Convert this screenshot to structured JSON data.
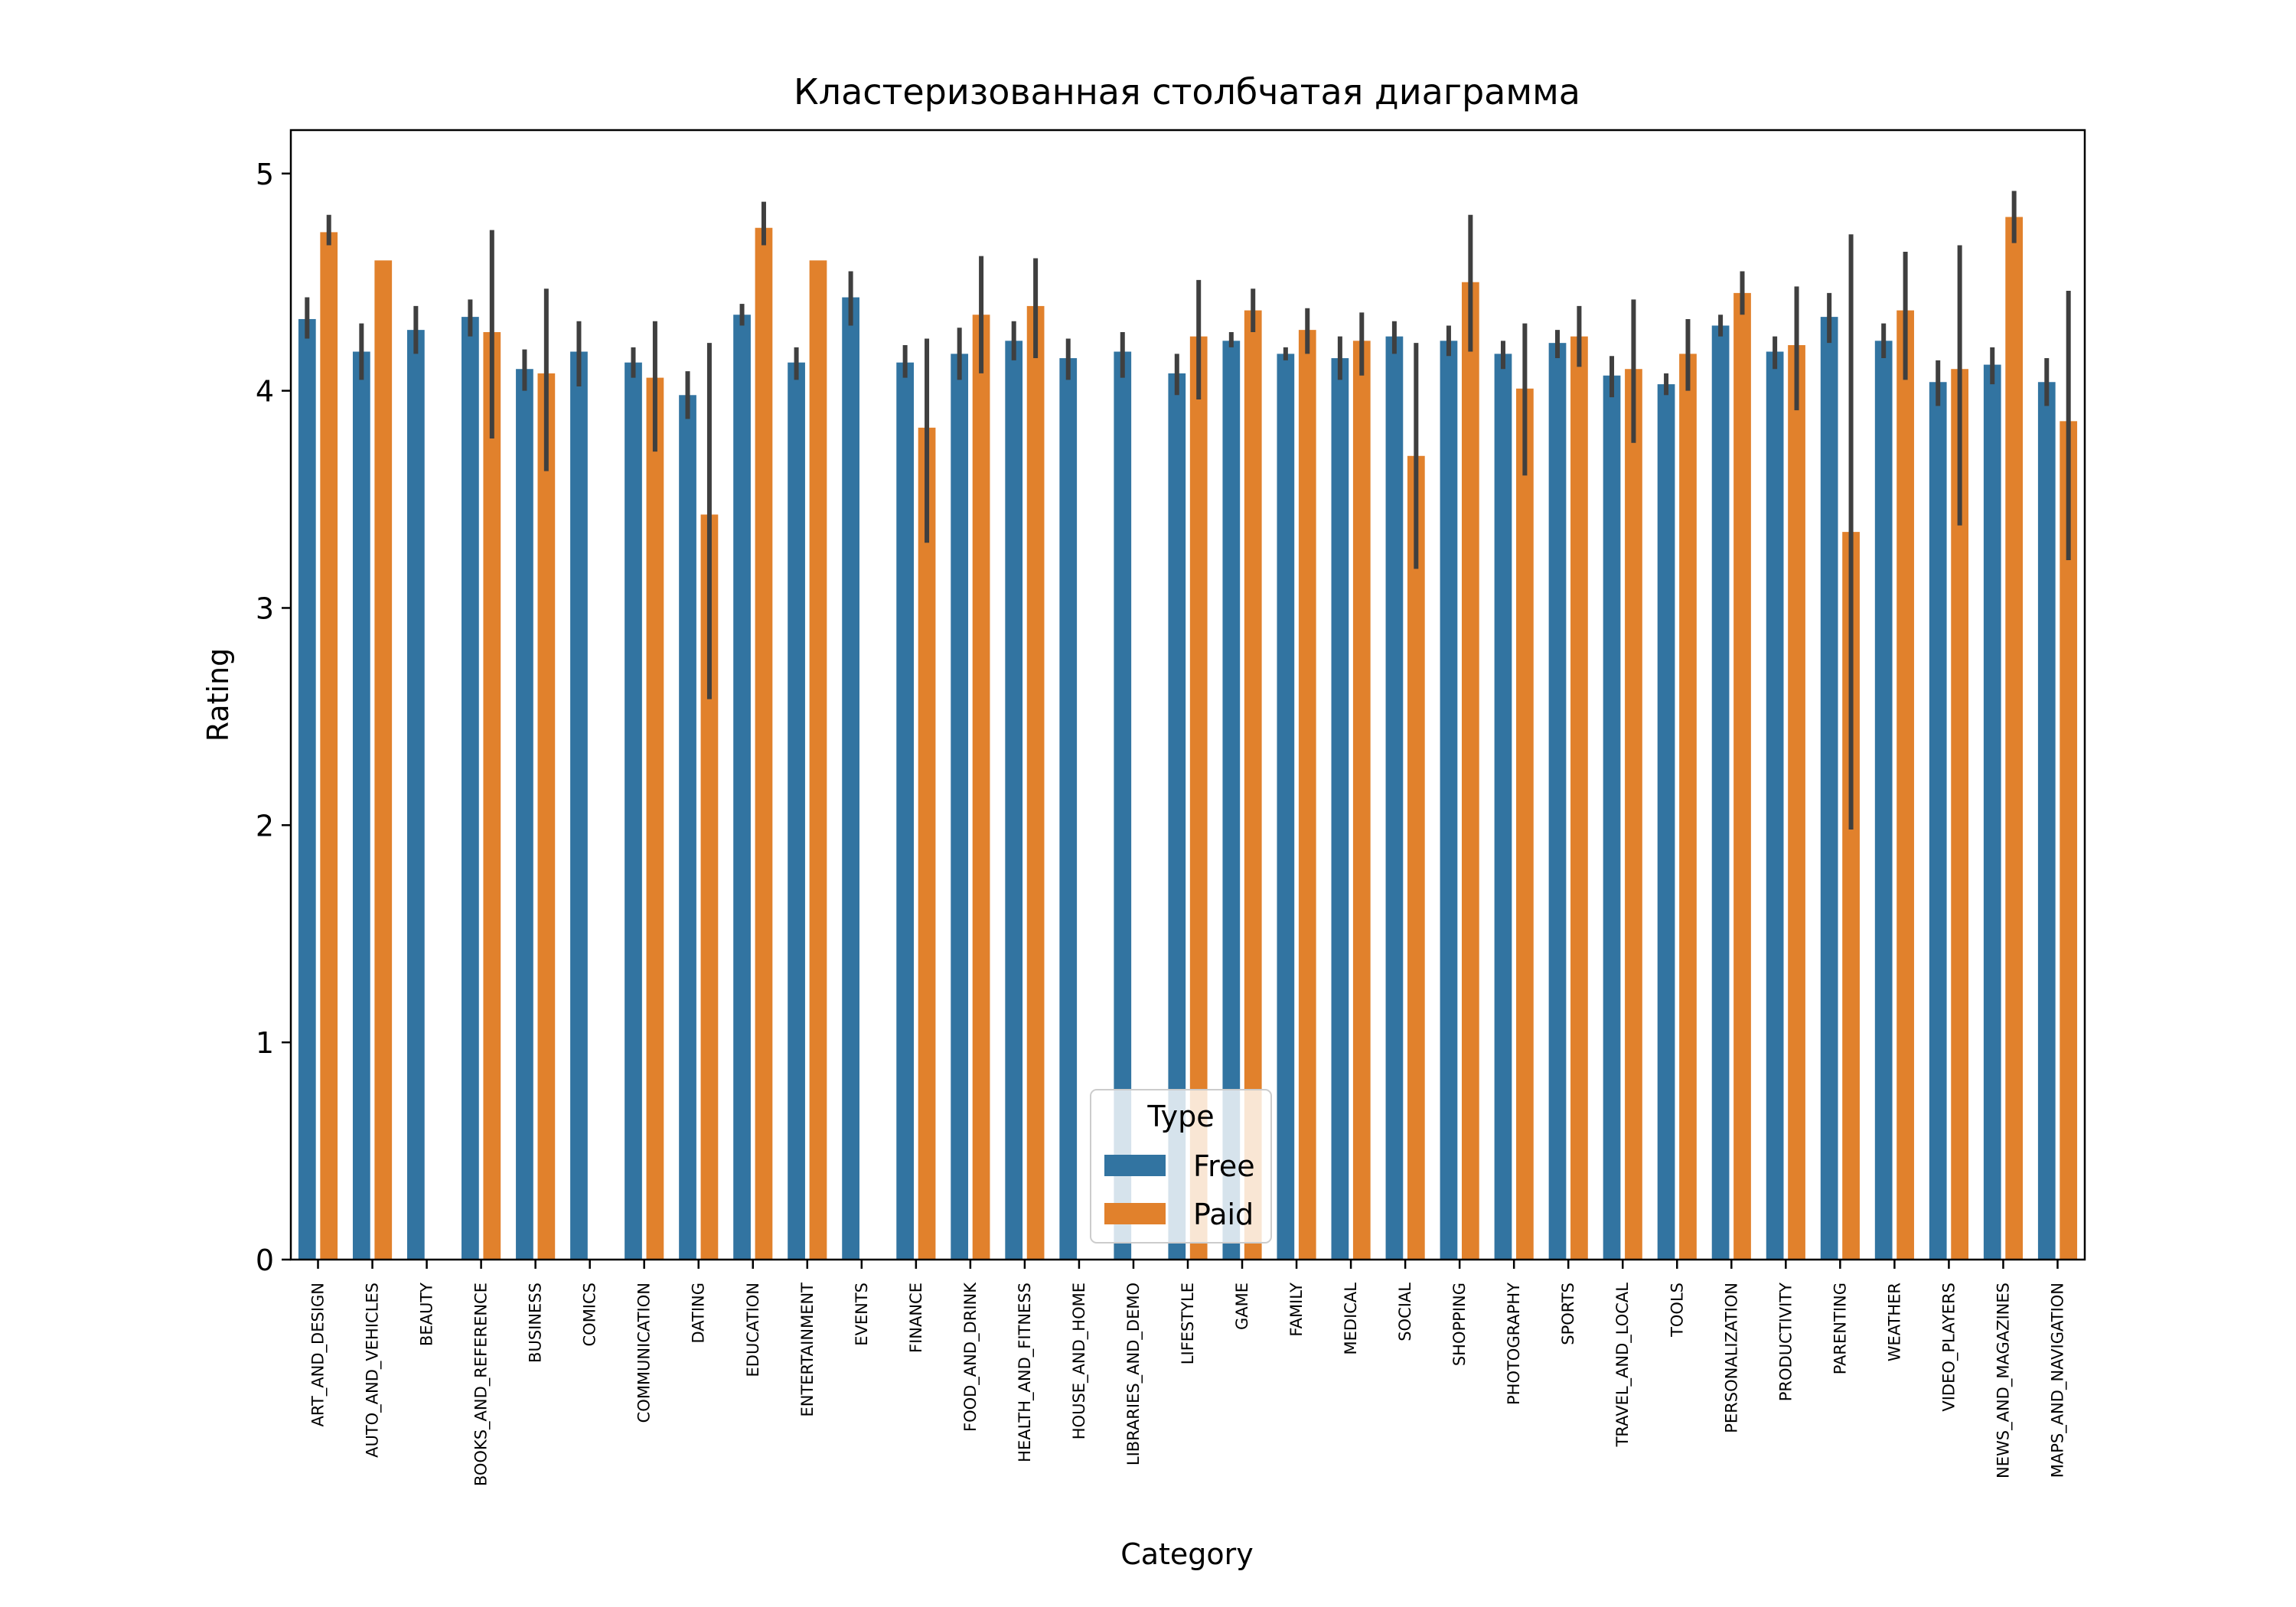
{
  "chart_data": {
    "type": "bar",
    "title": "Кластеризованная столбчатая диаграмма",
    "xlabel": "Category",
    "ylabel": "Rating",
    "ylim": [
      0,
      5.2
    ],
    "yticks": [
      0,
      1,
      2,
      3,
      4,
      5
    ],
    "categories": [
      "ART_AND_DESIGN",
      "AUTO_AND_VEHICLES",
      "BEAUTY",
      "BOOKS_AND_REFERENCE",
      "BUSINESS",
      "COMICS",
      "COMMUNICATION",
      "DATING",
      "EDUCATION",
      "ENTERTAINMENT",
      "EVENTS",
      "FINANCE",
      "FOOD_AND_DRINK",
      "HEALTH_AND_FITNESS",
      "HOUSE_AND_HOME",
      "LIBRARIES_AND_DEMO",
      "LIFESTYLE",
      "GAME",
      "FAMILY",
      "MEDICAL",
      "SOCIAL",
      "SHOPPING",
      "PHOTOGRAPHY",
      "SPORTS",
      "TRAVEL_AND_LOCAL",
      "TOOLS",
      "PERSONALIZATION",
      "PRODUCTIVITY",
      "PARENTING",
      "WEATHER",
      "VIDEO_PLAYERS",
      "NEWS_AND_MAGAZINES",
      "MAPS_AND_NAVIGATION"
    ],
    "series": [
      {
        "name": "Free",
        "color": "#3274a1",
        "values": [
          4.33,
          4.18,
          4.28,
          4.34,
          4.1,
          4.18,
          4.13,
          3.98,
          4.35,
          4.13,
          4.43,
          4.13,
          4.17,
          4.23,
          4.15,
          4.18,
          4.08,
          4.23,
          4.17,
          4.15,
          4.25,
          4.23,
          4.17,
          4.22,
          4.07,
          4.03,
          4.3,
          4.18,
          4.34,
          4.23,
          4.04,
          4.12,
          4.04
        ],
        "ci_low": [
          4.24,
          4.05,
          4.17,
          4.25,
          4.0,
          4.02,
          4.06,
          3.87,
          4.3,
          4.05,
          4.3,
          4.06,
          4.05,
          4.14,
          4.05,
          4.06,
          3.98,
          4.2,
          4.14,
          4.05,
          4.17,
          4.16,
          4.1,
          4.15,
          3.97,
          3.98,
          4.25,
          4.1,
          4.22,
          4.15,
          3.93,
          4.03,
          3.93
        ],
        "ci_high": [
          4.43,
          4.31,
          4.39,
          4.42,
          4.19,
          4.32,
          4.2,
          4.09,
          4.4,
          4.2,
          4.55,
          4.21,
          4.29,
          4.32,
          4.24,
          4.27,
          4.17,
          4.27,
          4.2,
          4.25,
          4.32,
          4.3,
          4.23,
          4.28,
          4.16,
          4.08,
          4.35,
          4.25,
          4.45,
          4.31,
          4.14,
          4.2,
          4.15
        ]
      },
      {
        "name": "Paid",
        "color": "#e1812c",
        "values": [
          4.73,
          4.6,
          null,
          4.27,
          4.08,
          null,
          4.06,
          3.43,
          4.75,
          4.6,
          null,
          3.83,
          4.35,
          4.39,
          null,
          null,
          4.25,
          4.37,
          4.28,
          4.23,
          3.7,
          4.5,
          4.01,
          4.25,
          4.1,
          4.17,
          4.45,
          4.21,
          3.35,
          4.37,
          4.1,
          4.8,
          3.86
        ],
        "ci_low": [
          4.67,
          4.6,
          null,
          3.78,
          3.63,
          null,
          3.72,
          2.58,
          4.67,
          4.6,
          null,
          3.3,
          4.08,
          4.15,
          null,
          null,
          3.96,
          4.27,
          4.17,
          4.07,
          3.18,
          4.18,
          3.61,
          4.11,
          3.76,
          4.0,
          4.35,
          3.91,
          1.98,
          4.05,
          3.38,
          4.68,
          3.22
        ],
        "ci_high": [
          4.81,
          4.6,
          null,
          4.74,
          4.47,
          null,
          4.32,
          4.22,
          4.87,
          4.6,
          null,
          4.24,
          4.62,
          4.61,
          null,
          null,
          4.51,
          4.47,
          4.38,
          4.36,
          4.22,
          4.81,
          4.31,
          4.39,
          4.42,
          4.33,
          4.55,
          4.48,
          4.72,
          4.64,
          4.67,
          4.92,
          4.46
        ]
      }
    ],
    "legend": {
      "title": "Type",
      "position": "lower-center",
      "entries": [
        "Free",
        "Paid"
      ]
    },
    "errorbar_color": "#3f3f3f",
    "grid": false
  }
}
